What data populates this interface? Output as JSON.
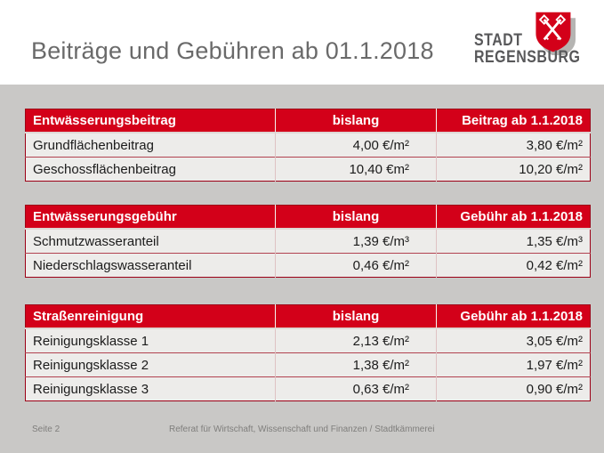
{
  "slide": {
    "title": "Beiträge und Gebühren ab 01.1.2018",
    "logo": {
      "line1": "STADT",
      "line2": "REGENSBURG"
    },
    "footer": {
      "page": "Seite 2",
      "department": "Referat für Wirtschaft, Wissenschaft und Finanzen / Stadtkämmerei"
    },
    "colors": {
      "accent_red": "#d30019",
      "slide_gray": "#c9c8c6",
      "row_background": "#edecea",
      "title_gray": "#6a6a6a"
    }
  },
  "tables": [
    {
      "headers": [
        "Entwässerungsbeitrag",
        "bislang",
        "Beitrag ab 1.1.2018"
      ],
      "rows": [
        [
          "Grundflächenbeitrag",
          "4,00 €/m²",
          "3,80 €/m²"
        ],
        [
          "Geschossflächenbeitrag",
          "10,40 €m²",
          "10,20 €/m²"
        ]
      ]
    },
    {
      "headers": [
        "Entwässerungsgebühr",
        "bislang",
        "Gebühr ab 1.1.2018"
      ],
      "rows": [
        [
          "Schmutzwasseranteil",
          "1,39 €/m³",
          "1,35 €/m³"
        ],
        [
          "Niederschlagswasseranteil",
          "0,46 €/m²",
          "0,42 €/m²"
        ]
      ]
    },
    {
      "headers": [
        "Straßenreinigung",
        "bislang",
        "Gebühr ab 1.1.2018"
      ],
      "rows": [
        [
          "Reinigungsklasse 1",
          "2,13 €/m²",
          "3,05 €/m²"
        ],
        [
          "Reinigungsklasse 2",
          "1,38 €/m²",
          "1,97 €/m²"
        ],
        [
          "Reinigungsklasse 3",
          "0,63 €/m²",
          "0,90 €/m²"
        ]
      ]
    }
  ]
}
